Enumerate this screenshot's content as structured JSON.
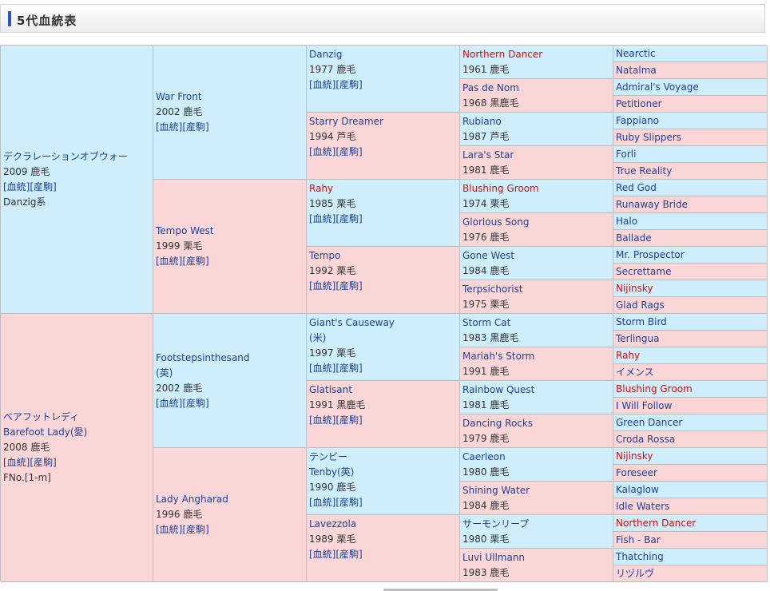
{
  "header": {
    "title": "5代血統表",
    "accent_color": "#2a56c6"
  },
  "colors": {
    "male_bg": "#cdeefa",
    "female_bg": "#fad7d6",
    "link": "#1b3f9c",
    "highlight": "#cc1111"
  },
  "subject": {
    "sire": {
      "name": "デクラレーションオブウォー",
      "born": "2009 鹿毛",
      "links": [
        "[血統]",
        "[産駒]"
      ],
      "lineage": "Danzig系"
    },
    "dam": {
      "name": "ベアフットレディ",
      "name_alt": "Barefoot Lady(愛)",
      "born": "2008 鹿毛",
      "links": [
        "[血統]",
        "[産駒]"
      ],
      "family": "FNo.[1-m]"
    }
  },
  "gen2": [
    {
      "name": "War Front",
      "born": "2002 鹿毛",
      "links": [
        "[血統]",
        "[産駒]"
      ]
    },
    {
      "name": "Tempo West",
      "born": "1999 栗毛",
      "links": [
        "[血統]",
        "[産駒]"
      ]
    },
    {
      "name": "Footstepsinthesand",
      "origin": "(英)",
      "born": "2002 鹿毛",
      "links": [
        "[血統]",
        "[産駒]"
      ]
    },
    {
      "name": "Lady Angharad",
      "born": "1996 鹿毛",
      "links": [
        "[血統]",
        "[産駒]"
      ]
    }
  ],
  "gen3": [
    {
      "name": "Danzig",
      "born": "1977 鹿毛",
      "links": [
        "[血統]",
        "[産駒]"
      ],
      "red": false
    },
    {
      "name": "Starry Dreamer",
      "born": "1994 芦毛",
      "links": [
        "[血統]",
        "[産駒]"
      ],
      "red": false
    },
    {
      "name": "Rahy",
      "born": "1985 栗毛",
      "links": [
        "[血統]",
        "[産駒]"
      ],
      "red": true
    },
    {
      "name": "Tempo",
      "born": "1992 栗毛",
      "links": [
        "[血統]",
        "[産駒]"
      ],
      "red": false
    },
    {
      "name": "Giant's Causeway",
      "origin": "(米)",
      "born": "1997 栗毛",
      "links": [
        "[血統]",
        "[産駒]"
      ],
      "red": false
    },
    {
      "name": "Glatisant",
      "born": "1991 黒鹿毛",
      "links": [
        "[血統]",
        "[産駒]"
      ],
      "red": false
    },
    {
      "name": "テンビー",
      "name_alt": "Tenby(英)",
      "born": "1990 鹿毛",
      "links": [
        "[血統]",
        "[産駒]"
      ],
      "red": false
    },
    {
      "name": "Lavezzola",
      "born": "1989 栗毛",
      "links": [
        "[血統]",
        "[産駒]"
      ],
      "red": false
    }
  ],
  "gen4": [
    {
      "name": "Northern Dancer",
      "born": "1961 鹿毛",
      "red": true
    },
    {
      "name": "Pas de Nom",
      "born": "1968 黒鹿毛",
      "red": false
    },
    {
      "name": "Rubiano",
      "born": "1987 芦毛",
      "red": false
    },
    {
      "name": "Lara's Star",
      "born": "1981 鹿毛",
      "red": false
    },
    {
      "name": "Blushing Groom",
      "born": "1974 栗毛",
      "red": true
    },
    {
      "name": "Glorious Song",
      "born": "1976 鹿毛",
      "red": false
    },
    {
      "name": "Gone West",
      "born": "1984 鹿毛",
      "red": false
    },
    {
      "name": "Terpsichorist",
      "born": "1975 栗毛",
      "red": false
    },
    {
      "name": "Storm Cat",
      "born": "1983 黒鹿毛",
      "red": false
    },
    {
      "name": "Mariah's Storm",
      "born": "1991 鹿毛",
      "red": false
    },
    {
      "name": "Rainbow Quest",
      "born": "1981 鹿毛",
      "red": false
    },
    {
      "name": "Dancing Rocks",
      "born": "1979 鹿毛",
      "red": false
    },
    {
      "name": "Caerleon",
      "born": "1980 鹿毛",
      "red": false
    },
    {
      "name": "Shining Water",
      "born": "1984 鹿毛",
      "red": false
    },
    {
      "name": "サーモンリープ",
      "born": "1980 栗毛",
      "red": false
    },
    {
      "name": "Luvi Ullmann",
      "born": "1983 鹿毛",
      "red": false
    }
  ],
  "gen5": [
    {
      "name": "Nearctic",
      "red": false
    },
    {
      "name": "Natalma",
      "red": false
    },
    {
      "name": "Admiral's Voyage",
      "red": false
    },
    {
      "name": "Petitioner",
      "red": false
    },
    {
      "name": "Fappiano",
      "red": false
    },
    {
      "name": "Ruby Slippers",
      "red": false
    },
    {
      "name": "Forli",
      "red": false
    },
    {
      "name": "True Reality",
      "red": false
    },
    {
      "name": "Red God",
      "red": false
    },
    {
      "name": "Runaway Bride",
      "red": false
    },
    {
      "name": "Halo",
      "red": false
    },
    {
      "name": "Ballade",
      "red": false
    },
    {
      "name": "Mr. Prospector",
      "red": false
    },
    {
      "name": "Secrettame",
      "red": false
    },
    {
      "name": "Nijinsky",
      "red": true
    },
    {
      "name": "Glad Rags",
      "red": false
    },
    {
      "name": "Storm Bird",
      "red": false
    },
    {
      "name": "Terlingua",
      "red": false
    },
    {
      "name": "Rahy",
      "red": true
    },
    {
      "name": "イメンス",
      "red": false
    },
    {
      "name": "Blushing Groom",
      "red": true
    },
    {
      "name": "I Will Follow",
      "red": false
    },
    {
      "name": "Green Dancer",
      "red": false
    },
    {
      "name": "Croda Rossa",
      "red": false
    },
    {
      "name": "Nijinsky",
      "red": true
    },
    {
      "name": "Foreseer",
      "red": false
    },
    {
      "name": "Kalaglow",
      "red": false
    },
    {
      "name": "Idle Waters",
      "red": false
    },
    {
      "name": "Northern Dancer",
      "red": true
    },
    {
      "name": "Fish - Bar",
      "red": false
    },
    {
      "name": "Thatching",
      "red": false
    },
    {
      "name": "リヅルヴ",
      "red": false
    }
  ]
}
